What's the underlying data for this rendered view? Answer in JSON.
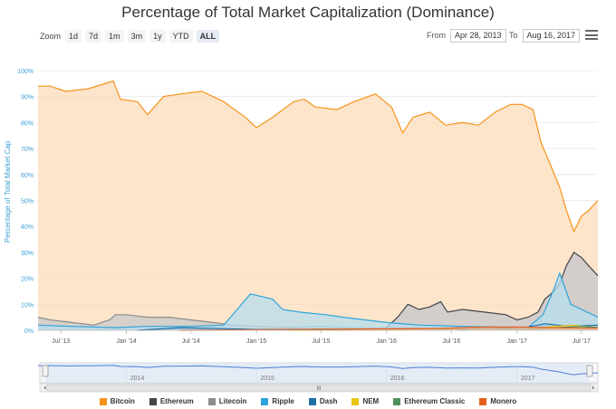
{
  "chart_data": {
    "type": "area",
    "title": "Percentage of Total Market Capitalization (Dominance)",
    "ylabel": "Percentage of Total Market Cap",
    "ylim": [
      0,
      100
    ],
    "yticks": [
      "0%",
      "10%",
      "20%",
      "30%",
      "40%",
      "50%",
      "60%",
      "70%",
      "80%",
      "90%",
      "100%"
    ],
    "xlim": [
      "2013-04-28",
      "2017-08-16"
    ],
    "xticks": [
      {
        "date": "2013-07-01",
        "label": "Jul '13"
      },
      {
        "date": "2014-01-01",
        "label": "Jan '14"
      },
      {
        "date": "2014-07-01",
        "label": "Jul '14"
      },
      {
        "date": "2015-01-01",
        "label": "Jan '15"
      },
      {
        "date": "2015-07-01",
        "label": "Jul '15"
      },
      {
        "date": "2016-01-01",
        "label": "Jan '16"
      },
      {
        "date": "2016-07-01",
        "label": "Jul '16"
      },
      {
        "date": "2017-01-01",
        "label": "Jan '17"
      },
      {
        "date": "2017-07-01",
        "label": "Jul '17"
      }
    ],
    "grid": true,
    "legend_position": "bottom",
    "series": [
      {
        "name": "Bitcoin",
        "color": "#f7931a",
        "fill": "#fbdcba",
        "points": [
          [
            "2013-04-28",
            94
          ],
          [
            "2013-06-01",
            94
          ],
          [
            "2013-07-15",
            92
          ],
          [
            "2013-09-15",
            93
          ],
          [
            "2013-11-25",
            96
          ],
          [
            "2013-12-15",
            89
          ],
          [
            "2014-02-01",
            88
          ],
          [
            "2014-03-01",
            83
          ],
          [
            "2014-04-15",
            90
          ],
          [
            "2014-06-01",
            91
          ],
          [
            "2014-08-01",
            92
          ],
          [
            "2014-10-01",
            88
          ],
          [
            "2014-12-01",
            82
          ],
          [
            "2015-01-01",
            78
          ],
          [
            "2015-02-15",
            82
          ],
          [
            "2015-04-15",
            88
          ],
          [
            "2015-05-15",
            89
          ],
          [
            "2015-06-15",
            86
          ],
          [
            "2015-08-15",
            85
          ],
          [
            "2015-10-01",
            88
          ],
          [
            "2015-12-01",
            91
          ],
          [
            "2016-01-15",
            86
          ],
          [
            "2016-02-15",
            76
          ],
          [
            "2016-03-15",
            82
          ],
          [
            "2016-05-01",
            84
          ],
          [
            "2016-06-15",
            79
          ],
          [
            "2016-08-01",
            80
          ],
          [
            "2016-09-15",
            79
          ],
          [
            "2016-11-01",
            84
          ],
          [
            "2016-12-15",
            87
          ],
          [
            "2017-01-15",
            87
          ],
          [
            "2017-02-15",
            85
          ],
          [
            "2017-03-10",
            72
          ],
          [
            "2017-04-01",
            65
          ],
          [
            "2017-05-01",
            55
          ],
          [
            "2017-05-20",
            46
          ],
          [
            "2017-06-10",
            38
          ],
          [
            "2017-07-01",
            44
          ],
          [
            "2017-07-20",
            46
          ],
          [
            "2017-08-16",
            50
          ]
        ]
      },
      {
        "name": "Ethereum",
        "color": "#434348",
        "fill": "#c6c6cc",
        "points": [
          [
            "2015-08-07",
            0
          ],
          [
            "2015-10-01",
            0.3
          ],
          [
            "2016-01-01",
            1
          ],
          [
            "2016-02-01",
            5
          ],
          [
            "2016-03-01",
            10
          ],
          [
            "2016-04-01",
            8
          ],
          [
            "2016-05-01",
            9
          ],
          [
            "2016-06-01",
            11
          ],
          [
            "2016-06-20",
            7
          ],
          [
            "2016-08-01",
            8
          ],
          [
            "2016-10-01",
            7
          ],
          [
            "2016-12-01",
            6
          ],
          [
            "2017-01-01",
            4
          ],
          [
            "2017-02-01",
            5
          ],
          [
            "2017-03-01",
            7
          ],
          [
            "2017-03-20",
            12
          ],
          [
            "2017-04-15",
            15
          ],
          [
            "2017-05-01",
            18
          ],
          [
            "2017-05-20",
            25
          ],
          [
            "2017-06-10",
            30
          ],
          [
            "2017-07-01",
            28
          ],
          [
            "2017-07-20",
            25
          ],
          [
            "2017-08-16",
            21
          ]
        ]
      },
      {
        "name": "Litecoin",
        "color": "#8c8c8c",
        "fill": "#c8c8c8",
        "points": [
          [
            "2013-04-28",
            5
          ],
          [
            "2013-06-01",
            4
          ],
          [
            "2013-08-01",
            3
          ],
          [
            "2013-10-01",
            2
          ],
          [
            "2013-11-15",
            4
          ],
          [
            "2013-12-01",
            6
          ],
          [
            "2014-01-01",
            6
          ],
          [
            "2014-03-01",
            5
          ],
          [
            "2014-05-01",
            5
          ],
          [
            "2014-07-01",
            4
          ],
          [
            "2014-09-01",
            3
          ],
          [
            "2014-11-01",
            2
          ],
          [
            "2015-01-01",
            1.5
          ],
          [
            "2015-04-01",
            1.2
          ],
          [
            "2015-07-01",
            1.5
          ],
          [
            "2015-10-01",
            1
          ],
          [
            "2016-01-01",
            0.8
          ],
          [
            "2016-06-01",
            0.8
          ],
          [
            "2017-01-01",
            0.7
          ],
          [
            "2017-04-01",
            2
          ],
          [
            "2017-06-01",
            2
          ],
          [
            "2017-08-16",
            2
          ]
        ]
      },
      {
        "name": "Ripple",
        "color": "#2ea4dc",
        "fill": "#b7ddee",
        "points": [
          [
            "2013-04-28",
            2
          ],
          [
            "2013-08-01",
            1.5
          ],
          [
            "2013-12-01",
            1
          ],
          [
            "2014-03-01",
            1.5
          ],
          [
            "2014-07-01",
            1.5
          ],
          [
            "2014-10-01",
            2
          ],
          [
            "2014-12-15",
            14
          ],
          [
            "2015-01-15",
            13
          ],
          [
            "2015-02-15",
            12
          ],
          [
            "2015-03-15",
            8
          ],
          [
            "2015-05-01",
            7
          ],
          [
            "2015-07-15",
            6
          ],
          [
            "2015-09-01",
            5
          ],
          [
            "2015-11-01",
            4
          ],
          [
            "2016-01-01",
            3
          ],
          [
            "2016-04-01",
            2
          ],
          [
            "2016-08-01",
            1.5
          ],
          [
            "2016-12-01",
            1.2
          ],
          [
            "2017-02-01",
            1
          ],
          [
            "2017-03-15",
            6
          ],
          [
            "2017-04-15",
            16
          ],
          [
            "2017-05-01",
            22
          ],
          [
            "2017-06-01",
            10
          ],
          [
            "2017-08-16",
            5
          ]
        ]
      },
      {
        "name": "Dash",
        "color": "#1f6fa5",
        "fill": "#a9c9e0",
        "points": [
          [
            "2014-02-01",
            0
          ],
          [
            "2014-06-01",
            1
          ],
          [
            "2015-01-01",
            0.3
          ],
          [
            "2016-01-01",
            0.5
          ],
          [
            "2016-10-01",
            0.5
          ],
          [
            "2017-02-01",
            1.3
          ],
          [
            "2017-03-20",
            2.5
          ],
          [
            "2017-06-01",
            1.5
          ],
          [
            "2017-08-16",
            2
          ]
        ]
      },
      {
        "name": "NEM",
        "color": "#e8c50c",
        "fill": "#f3e7a8",
        "points": [
          [
            "2015-04-01",
            0
          ],
          [
            "2016-06-01",
            0.2
          ],
          [
            "2017-02-01",
            0.4
          ],
          [
            "2017-04-15",
            1.5
          ],
          [
            "2017-06-01",
            2
          ],
          [
            "2017-08-16",
            1
          ]
        ]
      },
      {
        "name": "Ethereum Classic",
        "color": "#4f8f5c",
        "fill": "#bcd7bf",
        "points": [
          [
            "2016-07-24",
            0
          ],
          [
            "2016-09-01",
            0.7
          ],
          [
            "2016-12-01",
            0.5
          ],
          [
            "2017-03-01",
            0.6
          ],
          [
            "2017-05-01",
            1.1
          ],
          [
            "2017-07-01",
            1.5
          ],
          [
            "2017-08-16",
            1
          ]
        ]
      },
      {
        "name": "Monero",
        "color": "#e45f1c",
        "fill": "#f3bfa1",
        "points": [
          [
            "2014-06-01",
            0
          ],
          [
            "2015-01-01",
            0.2
          ],
          [
            "2016-06-01",
            0.7
          ],
          [
            "2016-09-01",
            1.2
          ],
          [
            "2017-01-01",
            1.3
          ],
          [
            "2017-04-01",
            1
          ],
          [
            "2017-08-16",
            0.8
          ]
        ]
      }
    ]
  },
  "toolbar": {
    "zoom_label": "Zoom",
    "zoom_buttons": [
      "1d",
      "7d",
      "1m",
      "3m",
      "1y",
      "YTD",
      "ALL"
    ],
    "from_label": "From",
    "from_value": "Apr 28, 2013",
    "to_label": "To",
    "to_value": "Aug 16, 2017"
  },
  "navigator": {
    "year_labels": [
      "2014",
      "2015",
      "2016",
      "2017"
    ],
    "handle_glyph": "III"
  },
  "colors": {
    "bitcoin": "#f7931a",
    "ethereum": "#434348",
    "ripple": "#2ea4dc"
  }
}
